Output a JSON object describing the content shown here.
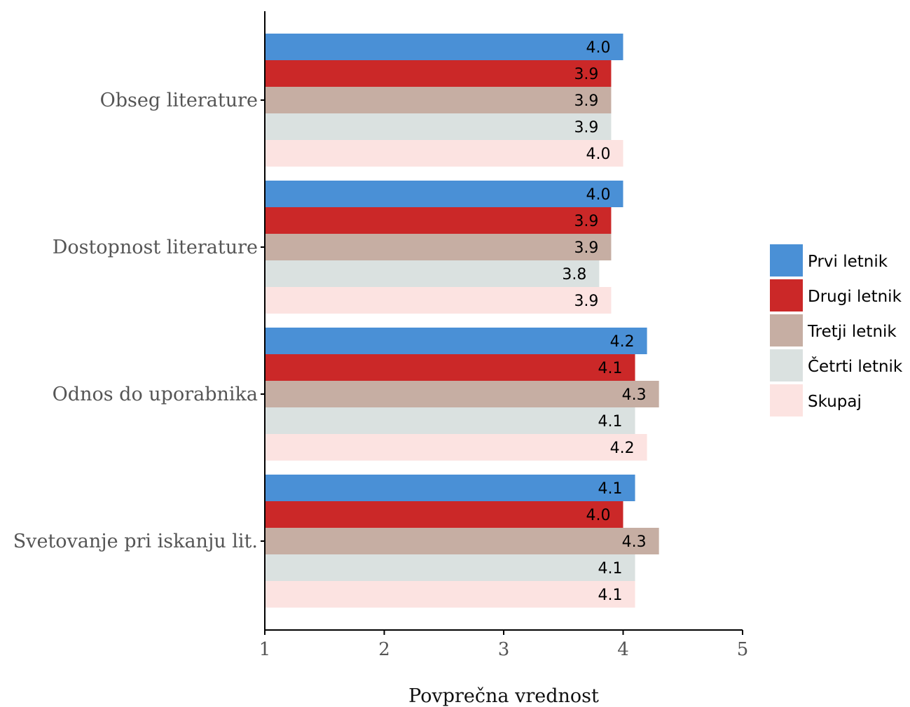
{
  "chart_data": {
    "type": "bar",
    "orientation": "horizontal",
    "title": "",
    "xlabel": "Povprečna vrednost",
    "ylabel": "",
    "xlim": [
      1,
      5
    ],
    "xticks": [
      "1",
      "2",
      "3",
      "4",
      "5"
    ],
    "grid": false,
    "legend_position": "right",
    "categories": [
      "Obseg literature",
      "Dostopnost literature",
      "Odnos do uporabnika",
      "Svetovanje pri iskanju lit."
    ],
    "series": [
      {
        "name": "Prvi letnik",
        "color": "#4A90D6",
        "values": [
          4.0,
          4.0,
          4.2,
          4.1
        ],
        "labels": [
          "4.0",
          "4.0",
          "4.2",
          "4.1"
        ]
      },
      {
        "name": "Drugi letnik",
        "color": "#CB2828",
        "values": [
          3.9,
          3.9,
          4.1,
          4.0
        ],
        "labels": [
          "3.9",
          "3.9",
          "4.1",
          "4.0"
        ]
      },
      {
        "name": "Tretji letnik",
        "color": "#C6AEA3",
        "values": [
          3.9,
          3.9,
          4.3,
          4.3
        ],
        "labels": [
          "3.9",
          "3.9",
          "4.3",
          "4.3"
        ]
      },
      {
        "name": "Četrti letnik",
        "color": "#DAE1E0",
        "values": [
          3.9,
          3.8,
          4.1,
          4.1
        ],
        "labels": [
          "3.9",
          "3.8",
          "4.1",
          "4.1"
        ]
      },
      {
        "name": "Skupaj",
        "color": "#FCE3E1",
        "values": [
          4.0,
          3.9,
          4.2,
          4.1
        ],
        "labels": [
          "4.0",
          "3.9",
          "4.2",
          "4.1"
        ]
      }
    ]
  }
}
